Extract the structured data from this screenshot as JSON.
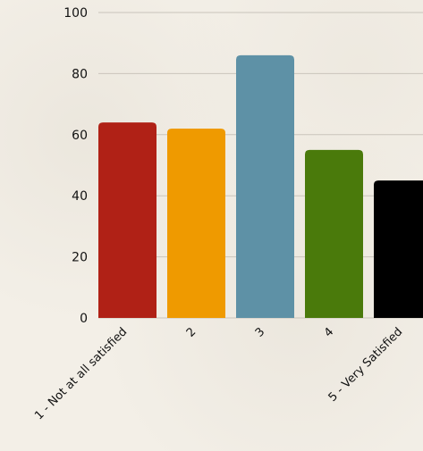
{
  "chart_data": {
    "type": "bar",
    "categories": [
      "1 - Not at all satisfied",
      "2",
      "3",
      "4",
      "5 - Very Satisfied"
    ],
    "values": [
      64,
      62,
      86,
      55,
      45
    ],
    "colors": [
      "#b02116",
      "#ef9a00",
      "#5e91a6",
      "#4a7a0b",
      "#000000"
    ],
    "title": "",
    "xlabel": "",
    "ylabel": "",
    "ylim": [
      0,
      100
    ],
    "yticks": [
      0,
      20,
      40,
      60,
      80,
      100
    ],
    "grid": true,
    "legend": "none"
  }
}
